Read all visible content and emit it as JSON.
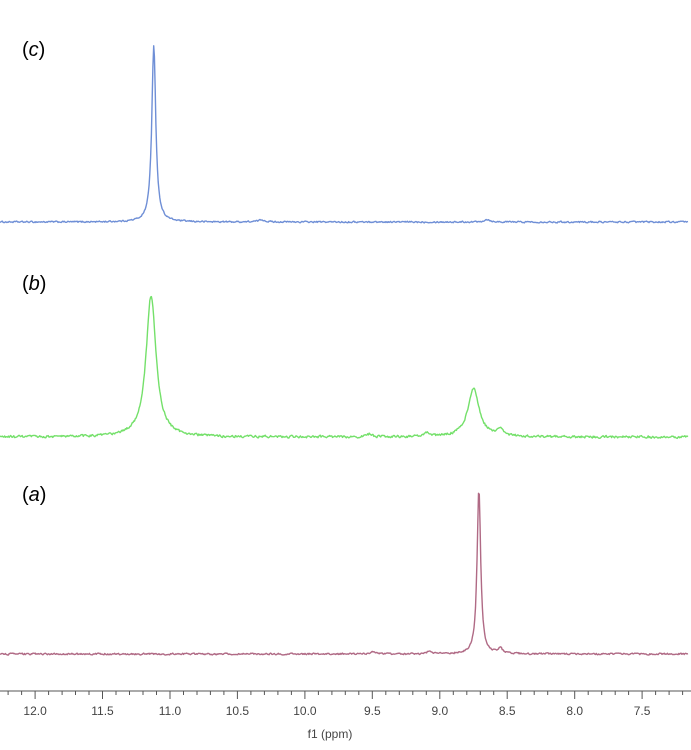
{
  "chart_data": {
    "type": "line",
    "title": "",
    "xlabel": "f1 (ppm)",
    "ylabel": "",
    "xlim": [
      12.26,
      7.16
    ],
    "x_reversed": true,
    "grid": false,
    "legend": "none",
    "x_ticks": [
      "12.0",
      "11.5",
      "11.0",
      "10.5",
      "10.0",
      "9.5",
      "9.0",
      "8.5",
      "8.0",
      "7.5"
    ],
    "x_tick_values": [
      12.0,
      11.5,
      11.0,
      10.5,
      10.0,
      9.5,
      9.0,
      8.5,
      8.0,
      7.5
    ],
    "panels": [
      {
        "label_prefix": "(",
        "label_letter": "c",
        "label_suffix": ")",
        "color": "#6f8fd6",
        "baseline": 0.0,
        "noise": 0.6,
        "peaks": [
          {
            "position": 11.12,
            "height": 100,
            "width": 0.018
          },
          {
            "position": 10.32,
            "height": 1.2,
            "width": 0.03
          },
          {
            "position": 8.65,
            "height": 1.4,
            "width": 0.03
          }
        ]
      },
      {
        "label_prefix": "(",
        "label_letter": "b",
        "label_suffix": ")",
        "color": "#74e06a",
        "baseline": 0.0,
        "noise": 1.2,
        "peaks": [
          {
            "position": 11.14,
            "height": 100,
            "width": 0.045
          },
          {
            "position": 8.75,
            "height": 34,
            "width": 0.05
          },
          {
            "position": 8.55,
            "height": 5,
            "width": 0.03
          },
          {
            "position": 9.1,
            "height": 3,
            "width": 0.02
          },
          {
            "position": 9.52,
            "height": 2,
            "width": 0.02
          }
        ]
      },
      {
        "label_prefix": "(",
        "label_letter": "a",
        "label_suffix": ")",
        "color": "#b06a85",
        "baseline": 0.0,
        "noise": 0.7,
        "peaks": [
          {
            "position": 8.71,
            "height": 100,
            "width": 0.016
          },
          {
            "position": 8.55,
            "height": 3,
            "width": 0.02
          },
          {
            "position": 9.5,
            "height": 1.5,
            "width": 0.02
          },
          {
            "position": 9.08,
            "height": 1.5,
            "width": 0.02
          }
        ]
      }
    ]
  }
}
